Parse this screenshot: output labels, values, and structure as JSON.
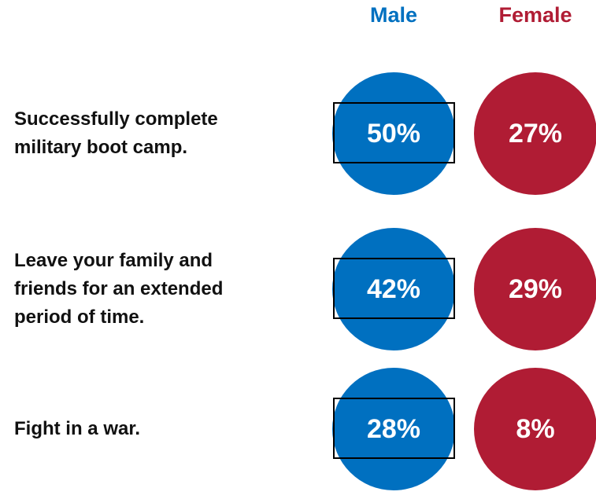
{
  "chart_data": {
    "type": "circles",
    "categories": [
      "Successfully complete military boot camp.",
      "Leave your family and friends for an extended period of time.",
      "Fight in a war."
    ],
    "series": [
      {
        "name": "Male",
        "color": "#0070c0",
        "values": [
          50,
          42,
          28
        ],
        "value_labels": [
          "50%",
          "42%",
          "28%"
        ]
      },
      {
        "name": "Female",
        "color": "#b01c34",
        "values": [
          27,
          29,
          8
        ],
        "value_labels": [
          "27%",
          "29%",
          "8%"
        ]
      }
    ]
  }
}
